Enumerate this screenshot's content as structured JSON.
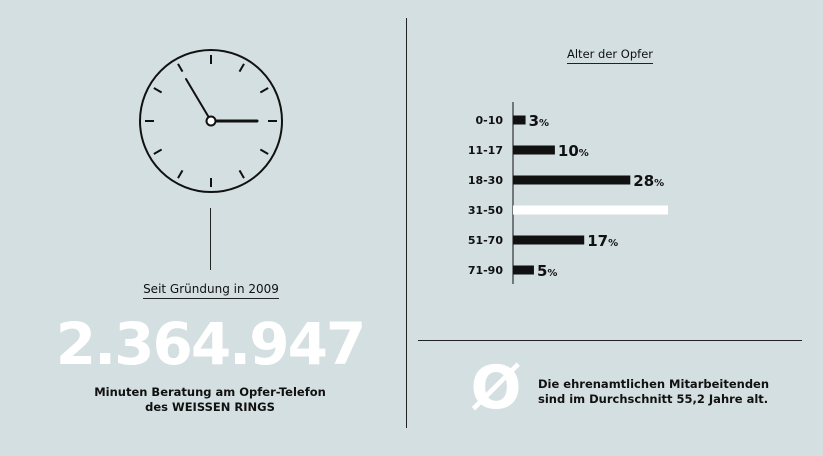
{
  "left": {
    "since_label": "Seit Gründung in 2009",
    "big_number": "2.364.947",
    "caption_line1": "Minuten Beratung am Opfer-Telefon",
    "caption_line2": "des WEISSEN RINGS",
    "clock_time": "03:00"
  },
  "right": {
    "avg_symbol": "Ø",
    "avg_line1": "Die ehrenamtlichen Mitarbeitenden",
    "avg_line2": "sind im Durchschnitt 55,2 Jahre alt."
  },
  "colors": {
    "background": "#d4dfe1",
    "bar": "#111111",
    "highlight_bar": "#ffffff",
    "text": "#111111",
    "big_number": "#ffffff"
  },
  "chart_data": {
    "type": "bar",
    "orientation": "horizontal",
    "title": "Alter der Opfer",
    "categories": [
      "0-10",
      "11-17",
      "18-30",
      "31-50",
      "51-70",
      "71-90"
    ],
    "values": [
      3,
      10,
      28,
      37,
      17,
      5
    ],
    "value_labels": [
      "3",
      "10",
      "28",
      "",
      "17",
      "5"
    ],
    "unit": "%",
    "highlighted_category": "31-50",
    "xlim": [
      0,
      37
    ],
    "grid": false,
    "legend": "none"
  }
}
